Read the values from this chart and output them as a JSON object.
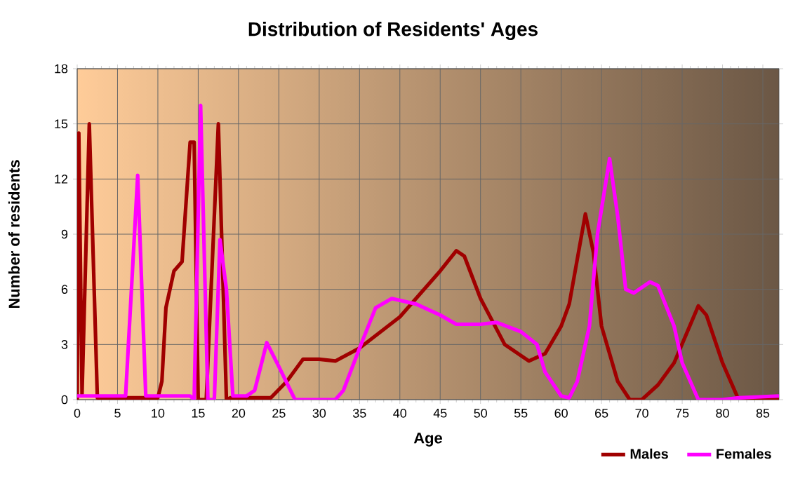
{
  "chart_data": {
    "type": "line",
    "title": "Distribution of Residents' Ages",
    "xlabel": "Age",
    "ylabel": "Number of residents",
    "series": [
      {
        "name": "Males",
        "color": "#a00000",
        "x": [
          0,
          0.2,
          0.6,
          1.5,
          2.5,
          4,
          10,
          10.5,
          11,
          12,
          13,
          14,
          14.5,
          15,
          16,
          17.5,
          18.5,
          19,
          22,
          24,
          26,
          28,
          30,
          32,
          35,
          40,
          45,
          47,
          48,
          50,
          53,
          56,
          58,
          60,
          61,
          63,
          64,
          65,
          67,
          68.5,
          70,
          72,
          74,
          77,
          78,
          80,
          82,
          87
        ],
        "values": [
          0,
          14.5,
          0.3,
          15,
          0.1,
          0.1,
          0.1,
          1,
          5,
          7,
          7.5,
          14,
          14,
          0,
          0,
          15,
          0,
          0.1,
          0.1,
          0.1,
          1,
          2.2,
          2.2,
          2.1,
          2.8,
          4.5,
          7,
          8.1,
          7.8,
          5.5,
          3,
          2.1,
          2.5,
          4,
          5.2,
          10.1,
          8,
          4,
          1,
          0,
          0,
          0.8,
          2,
          5.1,
          4.6,
          2,
          0,
          0
        ]
      },
      {
        "name": "Females",
        "color": "#ff00ff",
        "x": [
          0,
          6,
          7.5,
          8.5,
          14,
          14.5,
          15.3,
          16.2,
          17,
          17.7,
          18.5,
          19.3,
          21,
          22,
          23.5,
          25,
          27,
          32,
          33,
          35,
          37,
          39,
          42,
          45,
          47,
          50,
          52,
          55,
          57,
          58,
          60,
          61,
          62,
          63.5,
          64.5,
          66,
          67,
          68,
          69,
          71,
          72,
          74,
          75,
          77,
          80,
          82,
          87
        ],
        "values": [
          0.2,
          0.2,
          12.2,
          0.2,
          0.2,
          0,
          16,
          0,
          0,
          8.7,
          6,
          0.2,
          0.2,
          0.5,
          3.1,
          1.8,
          0,
          0,
          0.5,
          2.8,
          5,
          5.5,
          5.2,
          4.6,
          4.1,
          4.1,
          4.2,
          3.7,
          3,
          1.5,
          0.2,
          0.1,
          1,
          4,
          9,
          13.1,
          10,
          6,
          5.8,
          6.4,
          6.2,
          4,
          2,
          0,
          0,
          0.1,
          0.2
        ]
      }
    ],
    "xlim": [
      0,
      87
    ],
    "ylim": [
      0,
      18
    ],
    "xticks": [
      0,
      5,
      10,
      15,
      20,
      25,
      30,
      35,
      40,
      45,
      50,
      55,
      60,
      65,
      70,
      75,
      80,
      85
    ],
    "yticks": [
      0,
      3,
      6,
      9,
      12,
      15,
      18
    ],
    "grid": true,
    "legend": "bottom right"
  }
}
